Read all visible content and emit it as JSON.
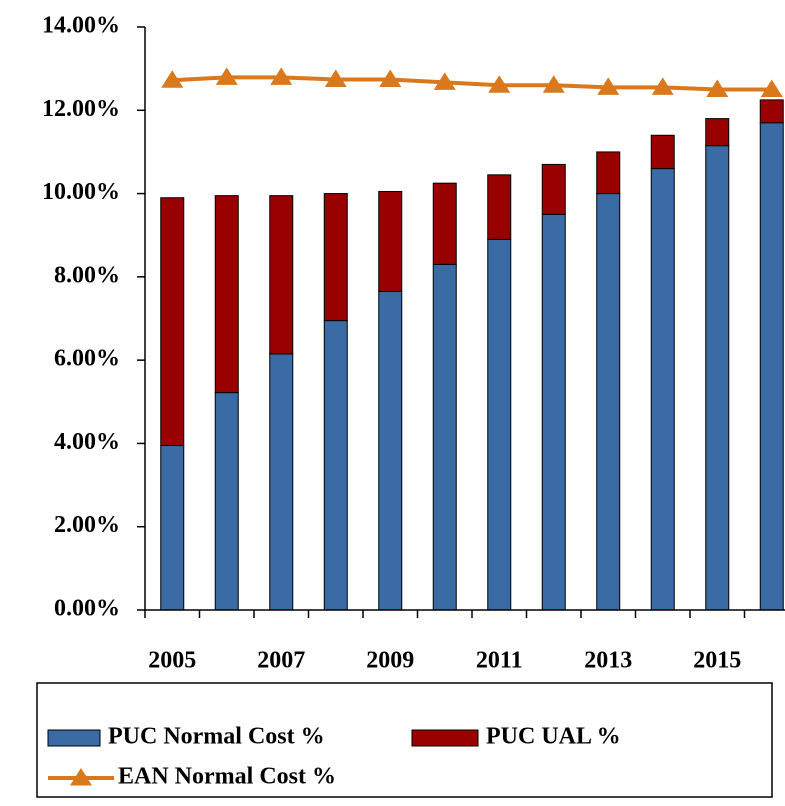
{
  "chart_data": {
    "type": "bar",
    "categories": [
      "2005",
      null,
      "2007",
      null,
      "2009",
      null,
      "2011",
      null,
      "2013",
      null,
      "2015",
      null
    ],
    "series": [
      {
        "name": "PUC Normal Cost %",
        "color": "#3b6ba5",
        "values": [
          3.95,
          5.22,
          6.15,
          6.95,
          7.65,
          8.3,
          8.9,
          9.5,
          10.0,
          10.6,
          11.15,
          11.7
        ]
      },
      {
        "name": "PUC UAL %",
        "color": "#990000",
        "values": [
          5.95,
          4.73,
          3.8,
          3.05,
          2.4,
          1.95,
          1.55,
          1.2,
          1.0,
          0.8,
          0.65,
          0.55
        ]
      },
      {
        "name": "EAN Normal Cost %",
        "type": "line",
        "color": "#d9791c",
        "values": [
          12.72,
          12.79,
          12.79,
          12.74,
          12.74,
          12.67,
          12.6,
          12.6,
          12.55,
          12.55,
          12.5,
          12.5
        ]
      }
    ],
    "stacked": true,
    "ylim": [
      0,
      14
    ],
    "yticks": [
      {
        "value": 0,
        "label": "0.00%"
      },
      {
        "value": 2,
        "label": "2.00%"
      },
      {
        "value": 4,
        "label": "4.00%"
      },
      {
        "value": 6,
        "label": "6.00%"
      },
      {
        "value": 8,
        "label": "8.00%"
      },
      {
        "value": 10,
        "label": "10.00%"
      },
      {
        "value": 12,
        "label": "12.00%"
      },
      {
        "value": 14,
        "label": "14.00%"
      }
    ],
    "grid": false,
    "legend": "bottom"
  }
}
